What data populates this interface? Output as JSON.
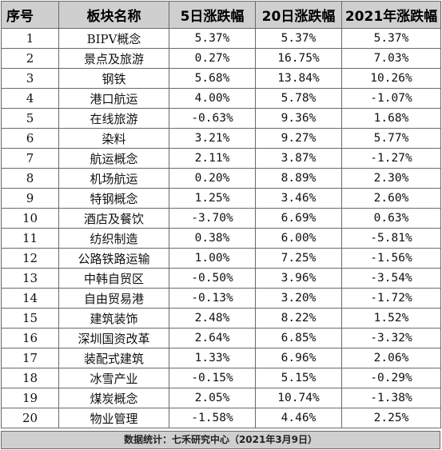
{
  "table": {
    "headers": [
      "序号",
      "板块名称",
      "5日涨跌幅",
      "20日涨跌幅",
      "2021年涨跌幅"
    ],
    "rows": [
      [
        "1",
        "BIPV概念",
        "5.37%",
        "5.37%",
        "5.37%"
      ],
      [
        "2",
        "景点及旅游",
        "0.27%",
        "16.75%",
        "7.03%"
      ],
      [
        "3",
        "钢铁",
        "5.68%",
        "13.84%",
        "10.26%"
      ],
      [
        "4",
        "港口航运",
        "4.00%",
        "5.78%",
        "-1.07%"
      ],
      [
        "5",
        "在线旅游",
        "-0.63%",
        "9.36%",
        "1.68%"
      ],
      [
        "6",
        "染料",
        "3.21%",
        "9.27%",
        "5.77%"
      ],
      [
        "7",
        "航运概念",
        "2.11%",
        "3.87%",
        "-1.27%"
      ],
      [
        "8",
        "机场航运",
        "0.20%",
        "8.89%",
        "2.30%"
      ],
      [
        "9",
        "特钢概念",
        "1.25%",
        "3.46%",
        "2.60%"
      ],
      [
        "10",
        "酒店及餐饮",
        "-3.70%",
        "6.69%",
        "0.63%"
      ],
      [
        "11",
        "纺织制造",
        "0.38%",
        "6.00%",
        "-5.81%"
      ],
      [
        "12",
        "公路铁路运输",
        "1.00%",
        "7.25%",
        "-1.56%"
      ],
      [
        "13",
        "中韩自贸区",
        "-0.50%",
        "3.96%",
        "-3.54%"
      ],
      [
        "14",
        "自由贸易港",
        "-0.13%",
        "3.20%",
        "-1.72%"
      ],
      [
        "15",
        "建筑装饰",
        "2.48%",
        "8.22%",
        "1.52%"
      ],
      [
        "16",
        "深圳国资改革",
        "2.64%",
        "6.85%",
        "-3.32%"
      ],
      [
        "17",
        "装配式建筑",
        "1.33%",
        "6.96%",
        "2.06%"
      ],
      [
        "18",
        "冰雪产业",
        "-0.15%",
        "5.15%",
        "-0.29%"
      ],
      [
        "19",
        "煤炭概念",
        "2.05%",
        "10.74%",
        "-1.38%"
      ],
      [
        "20",
        "物业管理",
        "-1.58%",
        "4.46%",
        "2.25%"
      ]
    ]
  },
  "footer": {
    "text": "数据统计：七禾研究中心（2021年3月9日）"
  }
}
